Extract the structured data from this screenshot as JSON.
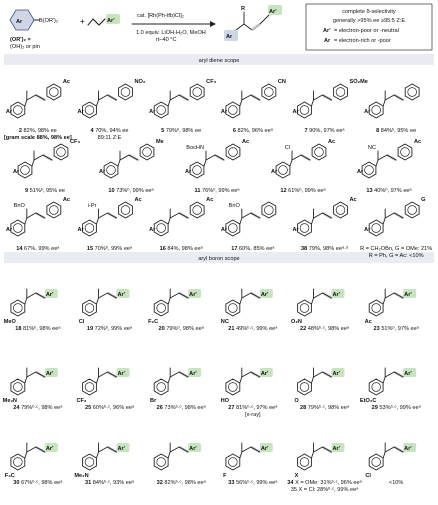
{
  "colors": {
    "ar_bg": "#cfd6e6",
    "ar_prime_bg": "#c8e3bf",
    "section_bar_bg": "#e9ecf3",
    "alkene_highlight": "#b8bcc4",
    "ar_prime_text": "#3c7d2e",
    "ar_text": "#3a4f88",
    "green_substituent": "#2e8b2e",
    "blue_substituent": "#3a5fb0",
    "purple_fragment": "#6a3c8f"
  },
  "scheme": {
    "reactant_ar": "Ar",
    "reactant_boron": "B(OR')₂",
    "reactant_or": "(OR')₂ =",
    "reactant_or_2": "(OH)₂ or pin",
    "diene_ar_prime": "Ar'",
    "conditions_top": "cat. [Rh(Ph-tfb)Cl]₂",
    "conditions_bottom_1": "1.0 equiv. LiOH·H₂O, MeOH",
    "conditions_bottom_2": "rt–40 °C",
    "product_r": "R",
    "product_ar": "Ar",
    "product_ar_prime": "Ar'",
    "box_line1": "complete δ-selectivity",
    "box_line2": "generally >95% ee ≥95:5 Z:E",
    "box_line3_label": "Ar'",
    "box_line3": "= electron-poor or -neutral",
    "box_line4_label": "Ar",
    "box_line4": "= electron-rich or -poor"
  },
  "sections": {
    "aryl_diene": "aryl diene scope",
    "aryl_boron": "aryl boron scope"
  },
  "diene_row1": [
    {
      "id": "2",
      "sub": "Ac",
      "text": "82%, 98% ee",
      "extra": "[gram scale 88%, 98% ee]"
    },
    {
      "id": "4",
      "sub": "NO₂",
      "text": "70%, 94% ee",
      "extra": "89:11 Z:E"
    },
    {
      "id": "5",
      "sub": "CF₃",
      "text": "79%ᵇ, 98% ee"
    },
    {
      "id": "6",
      "sub": "CN",
      "text": "82%, 96% eeᵃ"
    },
    {
      "id": "7",
      "sub": "SO₂Me",
      "text": "90%, 97% eeᵃ"
    },
    {
      "id": "8",
      "sub": "",
      "text": "84%ᵇ, 95% ee"
    }
  ],
  "diene_row2": [
    {
      "id": "9",
      "sub": "CF₃",
      "text": "51%ᵇ, 95% ee"
    },
    {
      "id": "10",
      "sub": "Me",
      "text": "73%ᵇ, 99% eeᵃ"
    },
    {
      "id": "11",
      "left": "BocHN",
      "sub": "Ac",
      "text": "76%ᵇ, 99% eeᵃ"
    },
    {
      "id": "12",
      "left": "Cl",
      "sub": "Ac",
      "text": "61%ᵇ, 99% eeᵃ"
    },
    {
      "id": "13",
      "left": "NC",
      "sub": "Ac",
      "text": "40%ᵇ, 97% eeᵃ"
    }
  ],
  "diene_row3": [
    {
      "id": "14",
      "left": "BnO",
      "sub": "Ac",
      "text": "67%, 99% eeᵃ"
    },
    {
      "id": "15",
      "left": "i-Pr",
      "sub": "Ac",
      "text": "70%ᵇ, 99% eeᵃ"
    },
    {
      "id": "16",
      "sub": "Ac",
      "text": "84%, 98% eeᵃ"
    },
    {
      "id": "17",
      "left": "BnO",
      "sub": "",
      "text": "60%, 85% eeᵃ"
    },
    {
      "id": "38",
      "sub": "Ac",
      "text": "79%, 98% eeᵃ·ᵈ"
    },
    {
      "id": "",
      "sub": "G",
      "text": "R = CH₂OBn, G = OMe: 21%",
      "extra": "R = Ph, G = Ac: <10%"
    }
  ],
  "boron_row1": [
    {
      "id": "18",
      "sub": "MeO",
      "text": "81%ᵇ, 98% eeᵃ"
    },
    {
      "id": "19",
      "sub": "Cl",
      "text": "72%ᵇ, 99% eeᵃ"
    },
    {
      "id": "20",
      "sub": "F₃C",
      "text": "79%ᵇ, 98% eeᵃ"
    },
    {
      "id": "21",
      "sub": "NC",
      "text": "49%ᵇ·ᶜ, 99% eeᵃ"
    },
    {
      "id": "22",
      "sub": "O₂N",
      "text": "48%ᵇ·ᶜ, 98% eeᵃ"
    },
    {
      "id": "23",
      "sub": "Ac",
      "text": "51%ᵇ, 97% eeᵃ"
    }
  ],
  "boron_row2": [
    {
      "id": "24",
      "sub": "Me₂N",
      "text": "79%ᵇ·ᶜ, 98% eeᵃ"
    },
    {
      "id": "25",
      "sub": "CF₃",
      "text": "60%ᵇ·ᶜ, 96% eeᵃ"
    },
    {
      "id": "26",
      "sub": "Br",
      "text": "73%ᵇ·ᶜ, 98% eeᵃ"
    },
    {
      "id": "27",
      "sub": "HO",
      "text": "81%ᵇ·ᶜ, 97% eeᵃ",
      "extra": "[x-ray]"
    },
    {
      "id": "28",
      "sub": "O",
      "text": "79%ᵇ·ᶜ, 98% eeᵃ"
    },
    {
      "id": "29",
      "sub": "EtO₂C",
      "text": "53%ᵇ·ᶜ, 99% eeᵃ"
    }
  ],
  "boron_row3": [
    {
      "id": "30",
      "sub": "F₃C",
      "text": "67%ᵇ·ᶜ, 98% eeᵃ"
    },
    {
      "id": "31",
      "sub": "Me₂N",
      "text": "84%ᵇ·ᶜ, 93% eeᵃ"
    },
    {
      "id": "32",
      "sub": "",
      "text": "82%ᵇ·ᶜ, 98% eeᵃ"
    },
    {
      "id": "33",
      "sub": "F",
      "text": "56%ᵇ·ᶜ, 99% eeᵃ"
    },
    {
      "id": "34",
      "sub": "X",
      "text": "X = OMe: 31%ᵇ·ᶜ, 96% eeᵃ",
      "extra": "35 X = Cl: 28%ᵇ·ᶜ, 99% eeᵃ"
    },
    {
      "id": "",
      "sub": "Cl",
      "text": "<10%"
    }
  ]
}
